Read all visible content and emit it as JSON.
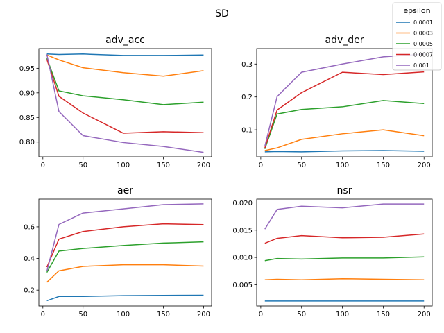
{
  "figure_title": "SD",
  "legend": {
    "title": "epsilon",
    "placement": "top-right",
    "entries": [
      {
        "label": "0.0001",
        "color": "#1f77b4"
      },
      {
        "label": "0.0003",
        "color": "#ff7f0e"
      },
      {
        "label": "0.0005",
        "color": "#2ca02c"
      },
      {
        "label": "0.0007",
        "color": "#d62728"
      },
      {
        "label": "0.001",
        "color": "#9467bd"
      }
    ]
  },
  "chart_data": [
    {
      "type": "line",
      "title": "adv_acc",
      "xlabel": "",
      "ylabel": "",
      "x": [
        5,
        20,
        50,
        100,
        150,
        200
      ],
      "xlim": [
        -5,
        210
      ],
      "xticks": [
        0,
        50,
        100,
        150,
        200
      ],
      "ylim": [
        0.77,
        0.99
      ],
      "yticks": [
        0.8,
        0.85,
        0.9,
        0.95
      ],
      "ytick_labels": [
        "0.80",
        "0.85",
        "0.90",
        "0.95"
      ],
      "grid": false,
      "series": [
        {
          "name": "0.0001",
          "color": "#1f77b4",
          "values": [
            0.979,
            0.978,
            0.979,
            0.976,
            0.976,
            0.977
          ]
        },
        {
          "name": "0.0003",
          "color": "#ff7f0e",
          "values": [
            0.977,
            0.967,
            0.951,
            0.941,
            0.934,
            0.945
          ]
        },
        {
          "name": "0.0005",
          "color": "#2ca02c",
          "values": [
            0.97,
            0.904,
            0.894,
            0.886,
            0.876,
            0.881
          ]
        },
        {
          "name": "0.0007",
          "color": "#d62728",
          "values": [
            0.968,
            0.893,
            0.859,
            0.818,
            0.821,
            0.819
          ]
        },
        {
          "name": "0.001",
          "color": "#9467bd",
          "values": [
            0.978,
            0.862,
            0.813,
            0.799,
            0.791,
            0.779
          ]
        }
      ]
    },
    {
      "type": "line",
      "title": "adv_der",
      "xlabel": "",
      "ylabel": "",
      "x": [
        5,
        20,
        50,
        100,
        150,
        200
      ],
      "xlim": [
        -5,
        210
      ],
      "xticks": [
        0,
        50,
        100,
        150,
        200
      ],
      "ylim": [
        0.018,
        0.347
      ],
      "yticks": [
        0.1,
        0.2,
        0.3
      ],
      "ytick_labels": [
        "0.1",
        "0.2",
        "0.3"
      ],
      "grid": false,
      "series": [
        {
          "name": "0.0001",
          "color": "#1f77b4",
          "values": [
            0.033,
            0.034,
            0.033,
            0.036,
            0.037,
            0.035
          ]
        },
        {
          "name": "0.0003",
          "color": "#ff7f0e",
          "values": [
            0.037,
            0.045,
            0.071,
            0.088,
            0.1,
            0.082
          ]
        },
        {
          "name": "0.0005",
          "color": "#2ca02c",
          "values": [
            0.042,
            0.148,
            0.162,
            0.17,
            0.189,
            0.18
          ]
        },
        {
          "name": "0.0007",
          "color": "#d62728",
          "values": [
            0.045,
            0.16,
            0.213,
            0.275,
            0.268,
            0.276
          ]
        },
        {
          "name": "0.001",
          "color": "#9467bd",
          "values": [
            0.05,
            0.201,
            0.275,
            0.3,
            0.322,
            0.33
          ]
        }
      ]
    },
    {
      "type": "line",
      "title": "aer",
      "xlabel": "",
      "ylabel": "",
      "x": [
        5,
        20,
        50,
        100,
        150,
        200
      ],
      "xlim": [
        -5,
        210
      ],
      "xticks": [
        0,
        50,
        100,
        150,
        200
      ],
      "ylim": [
        0.1,
        0.775
      ],
      "yticks": [
        0.2,
        0.4,
        0.6
      ],
      "ytick_labels": [
        "0.2",
        "0.4",
        "0.6"
      ],
      "grid": false,
      "series": [
        {
          "name": "0.0001",
          "color": "#1f77b4",
          "values": [
            0.133,
            0.16,
            0.16,
            0.165,
            0.167,
            0.168
          ]
        },
        {
          "name": "0.0003",
          "color": "#ff7f0e",
          "values": [
            0.25,
            0.322,
            0.35,
            0.36,
            0.36,
            0.352
          ]
        },
        {
          "name": "0.0005",
          "color": "#2ca02c",
          "values": [
            0.312,
            0.447,
            0.463,
            0.482,
            0.497,
            0.505
          ]
        },
        {
          "name": "0.0007",
          "color": "#d62728",
          "values": [
            0.345,
            0.522,
            0.57,
            0.6,
            0.619,
            0.614
          ]
        },
        {
          "name": "0.001",
          "color": "#9467bd",
          "values": [
            0.32,
            0.615,
            0.687,
            0.713,
            0.74,
            0.745
          ]
        }
      ]
    },
    {
      "type": "line",
      "title": "nsr",
      "xlabel": "",
      "ylabel": "",
      "x": [
        5,
        20,
        50,
        100,
        150,
        200
      ],
      "xlim": [
        -5,
        210
      ],
      "xticks": [
        0,
        50,
        100,
        150,
        200
      ],
      "ylim": [
        0.0011,
        0.0207
      ],
      "yticks": [
        0.005,
        0.01,
        0.015,
        0.02
      ],
      "ytick_labels": [
        "0.005",
        "0.010",
        "0.015",
        "0.020"
      ],
      "grid": false,
      "series": [
        {
          "name": "0.0001",
          "color": "#1f77b4",
          "values": [
            0.002,
            0.002,
            0.002,
            0.002,
            0.002,
            0.002
          ]
        },
        {
          "name": "0.0003",
          "color": "#ff7f0e",
          "values": [
            0.0059,
            0.006,
            0.0059,
            0.0061,
            0.006,
            0.0059
          ]
        },
        {
          "name": "0.0005",
          "color": "#2ca02c",
          "values": [
            0.0094,
            0.0098,
            0.0097,
            0.0099,
            0.0099,
            0.0101
          ]
        },
        {
          "name": "0.0007",
          "color": "#d62728",
          "values": [
            0.0126,
            0.0135,
            0.014,
            0.0136,
            0.0137,
            0.0143
          ]
        },
        {
          "name": "0.001",
          "color": "#9467bd",
          "values": [
            0.0152,
            0.0188,
            0.0194,
            0.0191,
            0.0198,
            0.0198
          ]
        }
      ]
    }
  ]
}
